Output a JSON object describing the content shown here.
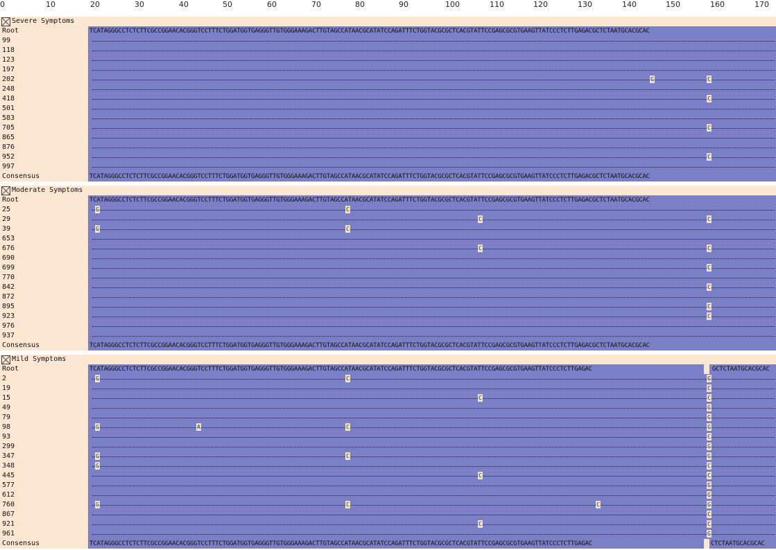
{
  "ruler": {
    "ticks": [
      "0",
      "10",
      "20",
      "30",
      "40",
      "50",
      "60",
      "70",
      "80",
      "90",
      "100",
      "110",
      "120",
      "130",
      "140",
      "150",
      "160",
      "170"
    ]
  },
  "colors": {
    "sequence_bg": "#7b7fc6",
    "label_bg": "#fde6d2",
    "snp_bg": "#efe3c6"
  },
  "groups": [
    {
      "title": "Severe Symptoms",
      "root_label": "Root",
      "root_seq": "TCATAGGGCCTCTCTTCGCCGGAACACGGGTCCTTTCTGGATGGTGAGGGTTGTGGGAAAGACTTGTAGCCATAACGCATATCCAGATTTCTGGTACGCGCTCACGTATTCCGAGCGCGTGAAGTTATCCCTCTTGAGACGCTCTAATGCACGCAC",
      "rows": [
        "99",
        "118",
        "123",
        "197",
        "202",
        "248",
        "418",
        "501",
        "583",
        "705",
        "865",
        "876",
        "952",
        "997"
      ],
      "consensus_label": "Consensus",
      "consensus_seq": "TCATAGGGCCTCTCTTCGCCGGAACACGGGTCCTTTCTGGATGGTGAGGGTTGTGGGAAAGACTTGTAGCCATAACGCATATCCAGATTTCTGGTACGCGCTCACGTATTCCGAGCGCGTGAAGTTATCCCTCTTGAGACGCTCTAATGCACGCAC"
    },
    {
      "title": "Moderate Symptoms",
      "root_label": "Root",
      "root_seq": "TCATAGGGCCTCTCTTCGCCGGAACACGGGTCCTTTCTGGATGGTGAGGGTTGTGGGAAAGACTTGTAGCCATAACGCATATCCAGATTTCTGGTACGCGCTCACGTATTCCGAGCGCGTGAAGTTATCCCTCTTGAGACGCTCTAATGCACGCAC",
      "rows": [
        "25",
        "29",
        "39",
        "653",
        "676",
        "690",
        "699",
        "770",
        "842",
        "872",
        "895",
        "923",
        "976",
        "937"
      ],
      "consensus_label": "Consensus",
      "consensus_seq": "TCATAGGGCCTCTCTTCGCCGGAACACGGGTCCTTTCTGGATGGTGAGGGTTGTGGGAAAGACTTGTAGCCATAACGCATATCCAGATTTCTGGTACGCGCTCACGTATTCCGAGCGCGTGAAGTTATCCCTCTTGAGACGCTCTAATGCACGCAC"
    },
    {
      "title": "Mild Symptoms",
      "root_label": "Root",
      "root_seq_a": "TCATAGGGCCTCTCTTCGCCGGAACACGGGTCCTTTCTGGATGGTGAGGGTTGTGGGAAAGACTTGTAGCCATAACGCATATCCAGATTTCTGGTACGCGCTCACGTATTCCGAGCGCGTGAAGTTATCCCTCTTGAGAC",
      "root_seq_b": "GCTCTAATGCACGCAC",
      "rows": [
        "2",
        "19",
        "15",
        "49",
        "79",
        "98",
        "93",
        "299",
        "347",
        "348",
        "445",
        "577",
        "612",
        "760",
        "867",
        "921",
        "961"
      ],
      "consensus_label": "Consensus",
      "consensus_seq_a": "TCATAGGGCCTCTCTTCGCCGGAACACGGGTCCTTTCTGGATGGTGAGGGTTGTGGGAAAGACTTGTAGCCATAACGCATATCCAGATTTCTGGTACGCGCTCACGTATTCCGAGCGCGTGAAGTTATCCCTCTTGAGAC",
      "consensus_seq_b": "CTCTAATGCACGCAC"
    }
  ],
  "snps": {
    "severe": [
      {
        "row": "202",
        "base": "G"
      },
      {
        "row": "202",
        "base": "C"
      },
      {
        "row": "418",
        "base": "C"
      },
      {
        "row": "705",
        "base": "C"
      },
      {
        "row": "952",
        "base": "C"
      }
    ],
    "moderate": [
      {
        "row": "25",
        "base": "G"
      },
      {
        "row": "25",
        "base": "C"
      },
      {
        "row": "29",
        "base": "C"
      },
      {
        "row": "29",
        "base": "C"
      },
      {
        "row": "39",
        "base": "G"
      },
      {
        "row": "39",
        "base": "C"
      },
      {
        "row": "676",
        "base": "C"
      },
      {
        "row": "676",
        "base": "C"
      },
      {
        "row": "699",
        "base": "C"
      },
      {
        "row": "842",
        "base": "C"
      },
      {
        "row": "895",
        "base": "C"
      },
      {
        "row": "923",
        "base": "C"
      }
    ],
    "mild": [
      {
        "row": "2",
        "base": "G"
      },
      {
        "row": "2",
        "base": "C"
      },
      {
        "row": "2",
        "base": "G"
      },
      {
        "row": "19",
        "base": "C"
      },
      {
        "row": "15",
        "base": "C"
      },
      {
        "row": "15",
        "base": "C"
      },
      {
        "row": "49",
        "base": "G"
      },
      {
        "row": "79",
        "base": "G"
      },
      {
        "row": "98",
        "base": "G"
      },
      {
        "row": "98",
        "base": "A"
      },
      {
        "row": "98",
        "base": "C"
      },
      {
        "row": "98",
        "base": "G"
      },
      {
        "row": "93",
        "base": "C"
      },
      {
        "row": "299",
        "base": "G"
      },
      {
        "row": "347",
        "base": "G"
      },
      {
        "row": "347",
        "base": "C"
      },
      {
        "row": "347",
        "base": "G"
      },
      {
        "row": "348",
        "base": "G"
      },
      {
        "row": "348",
        "base": "C"
      },
      {
        "row": "445",
        "base": "C"
      },
      {
        "row": "445",
        "base": "C"
      },
      {
        "row": "577",
        "base": "G"
      },
      {
        "row": "612",
        "base": "G"
      },
      {
        "row": "760",
        "base": "G"
      },
      {
        "row": "760",
        "base": "C"
      },
      {
        "row": "760",
        "base": "C"
      },
      {
        "row": "760",
        "base": "G"
      },
      {
        "row": "867",
        "base": "C"
      },
      {
        "row": "921",
        "base": "C"
      },
      {
        "row": "921",
        "base": "C"
      },
      {
        "row": "961",
        "base": "G"
      }
    ]
  }
}
